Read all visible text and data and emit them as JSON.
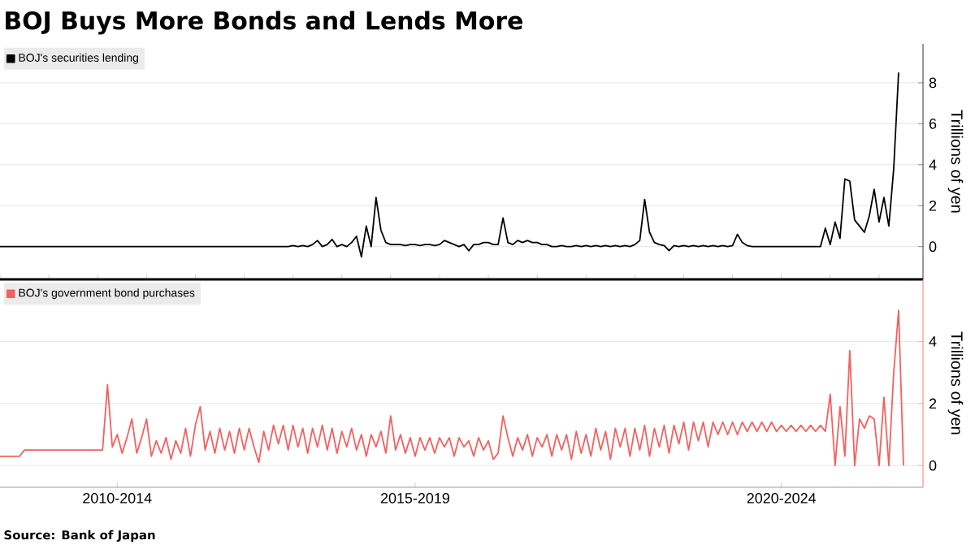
{
  "chart_data": [
    {
      "type": "line",
      "title": "BOJ Buys More Bonds and Lends More",
      "ylabel": "Trillions of yen",
      "ylim": [
        -1.6,
        9.9
      ],
      "categories": [
        null,
        null,
        null,
        null,
        null,
        null,
        null,
        null,
        null,
        null,
        null,
        null,
        null,
        null,
        null,
        null,
        null,
        null,
        null,
        null,
        null,
        null,
        null,
        null,
        null,
        null,
        null,
        null,
        null,
        null,
        null,
        null,
        null,
        null,
        null,
        null,
        null,
        null,
        null,
        null,
        null,
        null,
        null,
        null,
        null,
        null,
        null,
        null,
        null,
        null,
        null,
        null,
        null,
        null,
        null,
        null,
        null,
        null,
        null,
        null,
        null,
        null,
        null,
        null,
        null,
        null,
        null,
        null,
        null,
        null,
        null,
        null,
        null,
        null,
        null,
        null,
        null,
        null,
        null,
        null,
        null,
        null,
        null,
        null,
        null,
        null,
        null,
        null,
        null,
        null,
        null,
        null,
        null,
        null,
        null,
        null,
        null,
        null,
        null,
        null,
        null,
        null,
        null,
        null,
        null,
        null,
        null,
        null,
        null,
        null,
        null,
        null,
        null,
        null,
        null,
        null,
        null,
        null,
        null,
        null,
        null,
        null,
        null,
        null,
        null,
        null,
        null,
        null,
        null,
        null,
        null,
        null,
        null,
        null,
        null,
        null,
        null,
        null,
        null,
        null,
        null,
        null,
        null,
        null,
        null,
        null,
        null,
        null,
        null,
        null,
        null,
        null,
        null,
        null,
        null,
        null,
        null,
        null,
        null,
        null,
        null,
        null,
        null,
        null,
        null,
        null,
        null,
        null,
        null,
        null,
        null,
        null,
        null,
        null,
        null,
        null,
        null,
        null,
        null,
        null,
        null,
        null,
        null,
        null,
        null,
        null,
        null,
        null,
        null,
        null
      ],
      "yticks": [
        0,
        2,
        4,
        6,
        8
      ],
      "grid": "y",
      "legend": "top left",
      "tick_labels": "y",
      "series": [
        {
          "name": "BOJ's securities lending",
          "color": "#000000",
          "values": [
            0,
            0,
            0,
            0,
            0,
            0,
            0,
            0,
            0,
            0,
            0,
            0,
            0,
            0,
            0,
            0,
            0,
            0,
            0,
            0,
            0,
            0,
            0,
            0,
            0,
            0,
            0,
            0,
            0,
            0,
            0,
            0,
            0,
            0,
            0,
            0,
            0,
            0,
            0,
            0,
            0,
            0,
            0,
            0,
            0,
            0,
            0,
            0,
            0,
            0,
            0,
            0,
            0,
            0,
            0,
            0,
            0,
            0,
            0,
            0,
            0.05,
            0,
            0.05,
            0,
            0.1,
            0.3,
            0,
            0.1,
            0.35,
            0,
            0.1,
            0,
            0.2,
            0.5,
            -0.5,
            1.0,
            0,
            2.4,
            0.8,
            0.2,
            0.1,
            0.1,
            0.1,
            0.05,
            0.1,
            0.1,
            0.05,
            0.1,
            0.1,
            0.05,
            0.1,
            0.3,
            0.2,
            0.1,
            0,
            0.1,
            -0.2,
            0.1,
            0.1,
            0.2,
            0.2,
            0.1,
            0.1,
            1.4,
            0.2,
            0.1,
            0.3,
            0.2,
            0.3,
            0.2,
            0.2,
            0.1,
            0.1,
            0,
            0,
            0.05,
            0,
            0,
            0.05,
            0,
            0.05,
            0,
            0.05,
            0,
            0.05,
            0,
            0.05,
            0,
            0.05,
            0,
            0.1,
            0.3,
            2.3,
            0.7,
            0.2,
            0.1,
            0.05,
            -0.2,
            0.05,
            0,
            0.05,
            0,
            0.05,
            0,
            0.05,
            0,
            0.05,
            0,
            0.05,
            0,
            0.05,
            0.6,
            0.2,
            0.05,
            0,
            0,
            0,
            0,
            0,
            0,
            0,
            0,
            0,
            0,
            0,
            0,
            0,
            0,
            0,
            0.9,
            0.1,
            1.2,
            0.4,
            3.3,
            3.2,
            1.3,
            1.0,
            0.7,
            1.5,
            2.8,
            1.2,
            2.4,
            1.0,
            3.8,
            8.5,
            null,
            null,
            null,
            null,
            null
          ]
        }
      ]
    },
    {
      "type": "line",
      "ylabel": "Trillions of yen",
      "ylim": [
        -0.7,
        6.0
      ],
      "categories": [
        null,
        null,
        null,
        null,
        null,
        null,
        null,
        null,
        null,
        null,
        null,
        null,
        null,
        null,
        null,
        null,
        null,
        null,
        null,
        null,
        null,
        null,
        null,
        null,
        "2010-2014",
        null,
        null,
        null,
        null,
        null,
        null,
        null,
        null,
        null,
        null,
        null,
        null,
        null,
        null,
        null,
        null,
        null,
        null,
        null,
        null,
        null,
        null,
        null,
        null,
        null,
        null,
        null,
        null,
        null,
        null,
        null,
        null,
        null,
        null,
        null,
        null,
        null,
        null,
        null,
        null,
        null,
        null,
        null,
        null,
        null,
        null,
        null,
        null,
        null,
        null,
        null,
        null,
        null,
        null,
        null,
        null,
        null,
        null,
        null,
        null,
        "2015-2019",
        null,
        null,
        null,
        null,
        null,
        null,
        null,
        null,
        null,
        null,
        null,
        null,
        null,
        null,
        null,
        null,
        null,
        null,
        null,
        null,
        null,
        null,
        null,
        null,
        null,
        null,
        null,
        null,
        null,
        null,
        null,
        null,
        null,
        null,
        null,
        null,
        null,
        null,
        null,
        null,
        null,
        null,
        null,
        null,
        null,
        null,
        null,
        null,
        null,
        null,
        null,
        null,
        null,
        null,
        null,
        null,
        null,
        null,
        null,
        null,
        null,
        null,
        null,
        null,
        null,
        null,
        null,
        null,
        null,
        null,
        null,
        null,
        null,
        null,
        "2020-2024",
        null,
        null,
        null,
        null,
        null,
        null,
        null,
        null,
        null,
        null,
        null,
        null,
        null,
        null,
        null,
        null,
        null,
        null,
        null,
        null,
        null,
        null,
        null,
        null,
        null,
        null,
        null,
        null,
        null
      ],
      "yticks": [
        0,
        2,
        4
      ],
      "grid": "y",
      "legend": "top left",
      "annotations": [
        "Source: Bank of Japan"
      ],
      "series": [
        {
          "name": "BOJ's government bond purchases",
          "color": "#f4605f",
          "values": [
            0.3,
            0.3,
            0.3,
            0.3,
            0.3,
            0.5,
            0.5,
            0.5,
            0.5,
            0.5,
            0.5,
            0.5,
            0.5,
            0.5,
            0.5,
            0.5,
            0.5,
            0.5,
            0.5,
            0.5,
            0.5,
            0.5,
            2.6,
            0.6,
            1.0,
            0.4,
            0.9,
            1.5,
            0.4,
            0.9,
            1.5,
            0.3,
            0.8,
            0.4,
            0.9,
            0.2,
            0.8,
            0.4,
            1.2,
            0.3,
            1.3,
            1.9,
            0.5,
            1.1,
            0.4,
            1.2,
            0.5,
            1.1,
            0.4,
            1.2,
            0.5,
            1.2,
            0.6,
            0.1,
            1.1,
            0.5,
            1.3,
            0.7,
            1.3,
            0.5,
            1.3,
            0.6,
            1.2,
            0.4,
            1.2,
            0.6,
            1.3,
            0.5,
            1.2,
            0.4,
            1.1,
            0.6,
            1.2,
            0.5,
            1.0,
            0.3,
            1.0,
            0.6,
            1.1,
            0.4,
            1.6,
            0.5,
            1.0,
            0.4,
            0.9,
            0.3,
            0.9,
            0.5,
            0.9,
            0.4,
            0.9,
            0.6,
            0.9,
            0.3,
            0.9,
            0.6,
            0.8,
            0.3,
            0.9,
            0.5,
            0.8,
            0.2,
            0.4,
            1.6,
            0.9,
            0.3,
            0.9,
            0.5,
            1.0,
            0.3,
            0.9,
            0.6,
            1.0,
            0.3,
            1.0,
            0.5,
            1.0,
            0.2,
            1.1,
            0.4,
            1.0,
            0.3,
            1.2,
            0.5,
            1.1,
            0.2,
            1.2,
            0.6,
            1.2,
            0.3,
            1.2,
            0.5,
            1.3,
            0.3,
            1.2,
            0.6,
            1.3,
            0.4,
            1.3,
            0.7,
            1.4,
            0.5,
            1.4,
            0.8,
            1.4,
            0.6,
            1.4,
            1.0,
            1.4,
            1.0,
            1.4,
            1.0,
            1.4,
            1.1,
            1.4,
            1.1,
            1.4,
            1.1,
            1.4,
            1.1,
            1.3,
            1.1,
            1.3,
            1.1,
            1.3,
            1.1,
            1.3,
            1.1,
            1.3,
            1.1,
            2.3,
            0,
            1.9,
            0.3,
            3.7,
            0,
            1.5,
            1.2,
            1.6,
            1.5,
            0,
            2.2,
            0,
            3.0,
            5.0,
            0,
            null,
            null,
            null,
            null
          ]
        }
      ]
    }
  ]
}
